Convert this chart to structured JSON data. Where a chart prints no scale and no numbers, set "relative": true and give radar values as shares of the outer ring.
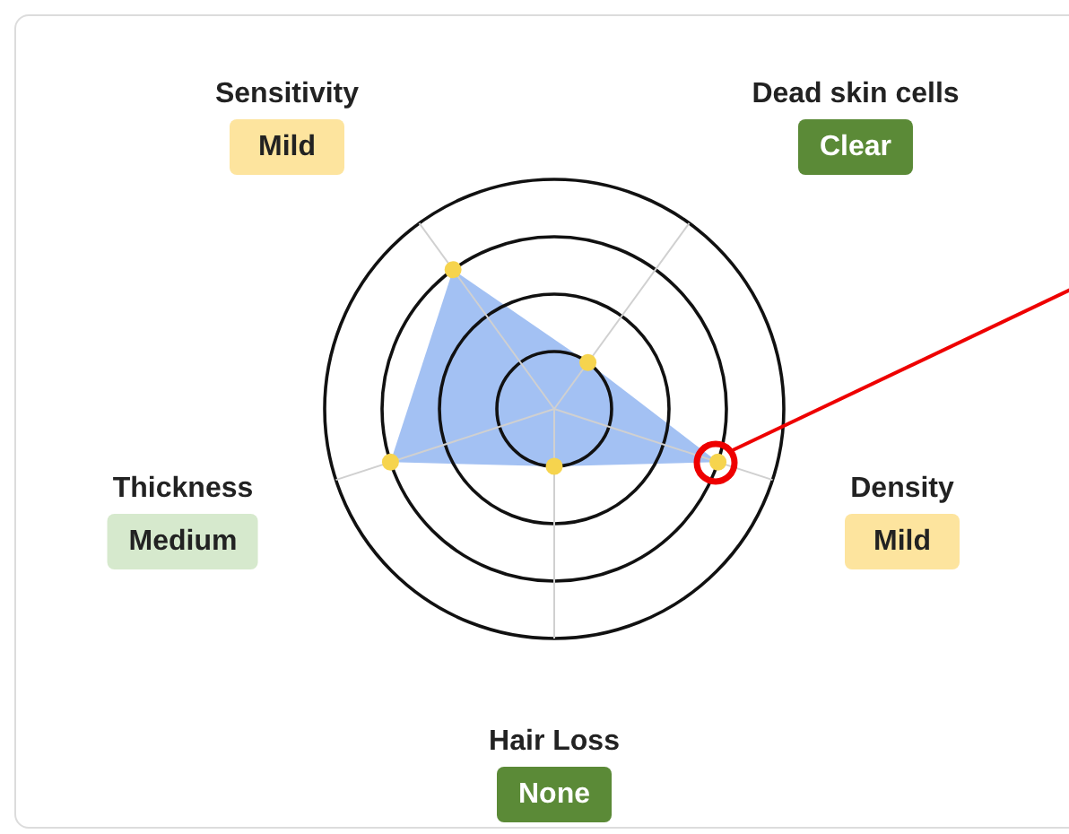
{
  "chart_data": {
    "type": "radar",
    "relative": true,
    "grid": true,
    "marker": "circle",
    "categories": [
      "Dead skin cells",
      "Density",
      "Hair Loss",
      "Thickness",
      "Sensitivity"
    ],
    "series": [
      {
        "color": "#a3c1f3",
        "values": [
          0.25,
          0.75,
          0.25,
          0.75,
          0.75
        ]
      }
    ],
    "annotations": [
      "Clear",
      "Mild",
      "None",
      "Medium",
      "Mild"
    ]
  }
}
